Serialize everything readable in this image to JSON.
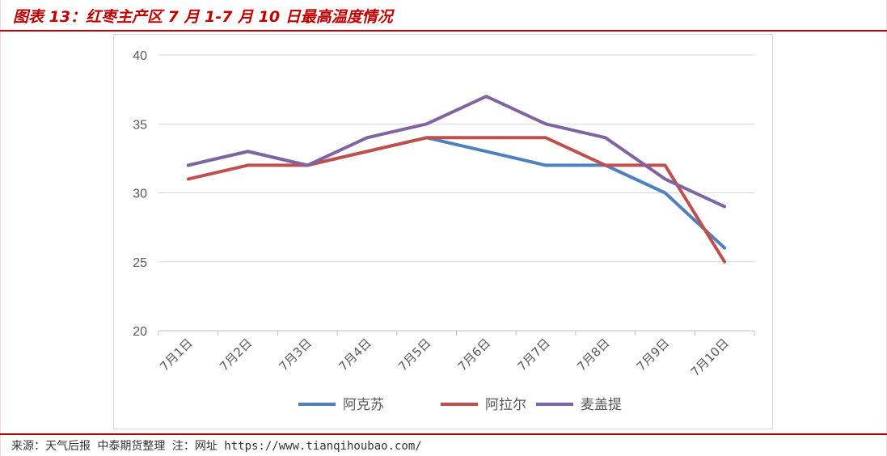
{
  "header": {
    "title": "图表 13：红枣主产区 7 月 1-7 月 10 日最高温度情况"
  },
  "footer": {
    "source": "来源：天气后报 中泰期货整理 注：网址 https://www.tianqihoubao.com/"
  },
  "colors": {
    "accent": "#c00000"
  },
  "chart_data": {
    "type": "line",
    "categories": [
      "7月1日",
      "7月2日",
      "7月3日",
      "7月4日",
      "7月5日",
      "7月6日",
      "7月7日",
      "7月8日",
      "7月9日",
      "7月10日"
    ],
    "ylim": [
      20,
      40
    ],
    "yticks": [
      20,
      25,
      30,
      35,
      40
    ],
    "grid": true,
    "legend_position": "bottom",
    "series": [
      {
        "name": "阿克苏",
        "color": "#4f81bd",
        "values": [
          32,
          33,
          32,
          33,
          34,
          33,
          32,
          32,
          30,
          26
        ]
      },
      {
        "name": "阿拉尔",
        "color": "#c0504d",
        "values": [
          31,
          32,
          32,
          33,
          34,
          34,
          34,
          32,
          32,
          25
        ]
      },
      {
        "name": "麦盖提",
        "color": "#8064a2",
        "values": [
          32,
          33,
          32,
          34,
          35,
          37,
          35,
          34,
          31,
          29
        ]
      }
    ]
  }
}
